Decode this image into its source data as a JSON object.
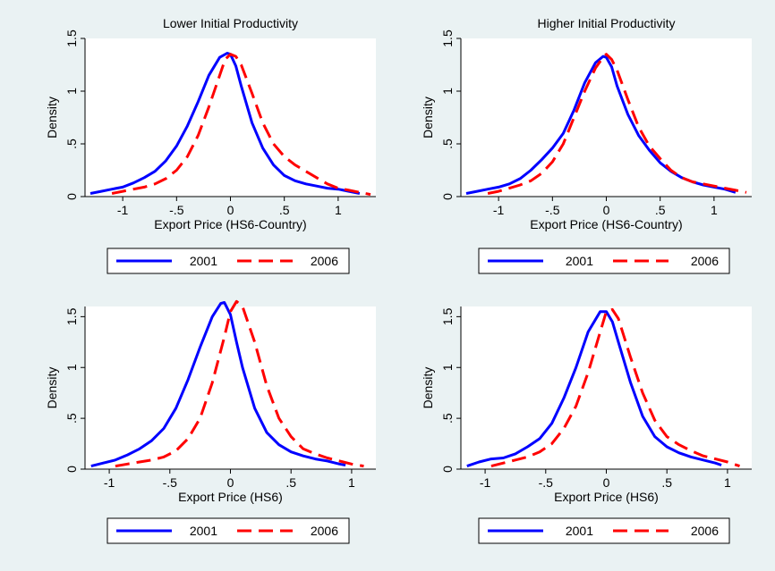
{
  "colors": {
    "background": "#eaf2f3",
    "plot_bg": "#ffffff",
    "series_2001": "#0000ff",
    "series_2006": "#ff0000"
  },
  "chart_data": [
    {
      "type": "line",
      "title": "Lower Initial Productivity",
      "xlabel": "Export Price (HS6-Country)",
      "ylabel": "Density",
      "xlim": [
        -1.35,
        1.35
      ],
      "ylim": [
        0,
        1.5
      ],
      "xticks": [
        -1,
        -0.5,
        0,
        0.5,
        1
      ],
      "xtick_labels": [
        "-1",
        "-.5",
        "0",
        ".5",
        "1"
      ],
      "yticks": [
        0,
        0.5,
        1,
        1.5
      ],
      "ytick_labels": [
        "0",
        ".5",
        "1",
        "1.5"
      ],
      "legend_position": "bottom",
      "series": [
        {
          "name": "2001",
          "style": "solid",
          "color": "#0000ff",
          "x": [
            -1.3,
            -1.2,
            -1.1,
            -1.0,
            -0.9,
            -0.8,
            -0.7,
            -0.6,
            -0.5,
            -0.4,
            -0.3,
            -0.2,
            -0.1,
            -0.03,
            0.0,
            0.05,
            0.1,
            0.2,
            0.3,
            0.4,
            0.5,
            0.6,
            0.7,
            0.8,
            0.9,
            1.0,
            1.1,
            1.2
          ],
          "y": [
            0.03,
            0.05,
            0.07,
            0.09,
            0.13,
            0.18,
            0.24,
            0.34,
            0.48,
            0.67,
            0.9,
            1.15,
            1.32,
            1.36,
            1.35,
            1.24,
            1.05,
            0.7,
            0.46,
            0.3,
            0.2,
            0.15,
            0.12,
            0.1,
            0.08,
            0.07,
            0.05,
            0.03
          ]
        },
        {
          "name": "2006",
          "style": "dashed",
          "color": "#ff0000",
          "x": [
            -1.1,
            -1.0,
            -0.9,
            -0.8,
            -0.7,
            -0.6,
            -0.5,
            -0.4,
            -0.3,
            -0.2,
            -0.1,
            -0.05,
            0.0,
            0.05,
            0.1,
            0.2,
            0.3,
            0.4,
            0.5,
            0.6,
            0.7,
            0.8,
            0.9,
            1.0,
            1.1,
            1.2,
            1.3
          ],
          "y": [
            0.03,
            0.05,
            0.07,
            0.09,
            0.12,
            0.17,
            0.25,
            0.38,
            0.58,
            0.85,
            1.15,
            1.3,
            1.35,
            1.33,
            1.25,
            0.98,
            0.7,
            0.5,
            0.38,
            0.3,
            0.24,
            0.18,
            0.12,
            0.08,
            0.06,
            0.04,
            0.02
          ]
        }
      ]
    },
    {
      "type": "line",
      "title": "Higher Initial Productivity",
      "xlabel": "Export Price (HS6-Country)",
      "ylabel": "Density",
      "xlim": [
        -1.35,
        1.35
      ],
      "ylim": [
        0,
        1.5
      ],
      "xticks": [
        -1,
        -0.5,
        0,
        0.5,
        1
      ],
      "xtick_labels": [
        "-1",
        "-.5",
        "0",
        ".5",
        "1"
      ],
      "yticks": [
        0,
        0.5,
        1,
        1.5
      ],
      "ytick_labels": [
        "0",
        ".5",
        "1",
        "1.5"
      ],
      "legend_position": "bottom",
      "series": [
        {
          "name": "2001",
          "style": "solid",
          "color": "#0000ff",
          "x": [
            -1.3,
            -1.2,
            -1.1,
            -1.0,
            -0.9,
            -0.8,
            -0.7,
            -0.6,
            -0.5,
            -0.4,
            -0.3,
            -0.2,
            -0.1,
            -0.03,
            0.0,
            0.05,
            0.1,
            0.2,
            0.3,
            0.4,
            0.5,
            0.6,
            0.7,
            0.8,
            0.9,
            1.0,
            1.1,
            1.2
          ],
          "y": [
            0.03,
            0.05,
            0.07,
            0.09,
            0.12,
            0.17,
            0.25,
            0.35,
            0.46,
            0.6,
            0.82,
            1.08,
            1.27,
            1.33,
            1.32,
            1.23,
            1.05,
            0.78,
            0.58,
            0.44,
            0.32,
            0.24,
            0.18,
            0.14,
            0.11,
            0.09,
            0.07,
            0.04
          ]
        },
        {
          "name": "2006",
          "style": "dashed",
          "color": "#ff0000",
          "x": [
            -1.1,
            -1.0,
            -0.9,
            -0.8,
            -0.7,
            -0.6,
            -0.5,
            -0.4,
            -0.3,
            -0.2,
            -0.1,
            -0.03,
            0.0,
            0.05,
            0.1,
            0.2,
            0.3,
            0.4,
            0.5,
            0.6,
            0.7,
            0.8,
            0.9,
            1.0,
            1.1,
            1.2,
            1.3
          ],
          "y": [
            0.03,
            0.05,
            0.08,
            0.11,
            0.15,
            0.22,
            0.33,
            0.5,
            0.75,
            1.0,
            1.22,
            1.32,
            1.35,
            1.3,
            1.2,
            0.92,
            0.66,
            0.48,
            0.36,
            0.25,
            0.18,
            0.14,
            0.12,
            0.1,
            0.08,
            0.06,
            0.04
          ]
        }
      ]
    },
    {
      "type": "line",
      "title": "",
      "xlabel": "Export Price (HS6)",
      "ylabel": "Density",
      "xlim": [
        -1.2,
        1.2
      ],
      "ylim": [
        0,
        1.6
      ],
      "xticks": [
        -1,
        -0.5,
        0,
        0.5,
        1
      ],
      "xtick_labels": [
        "-1",
        "-.5",
        "0",
        ".5",
        "1"
      ],
      "yticks": [
        0,
        0.5,
        1,
        1.5
      ],
      "ytick_labels": [
        "0",
        ".5",
        "1",
        "1.5"
      ],
      "legend_position": "bottom",
      "series": [
        {
          "name": "2001",
          "style": "solid",
          "color": "#0000ff",
          "x": [
            -1.15,
            -1.05,
            -0.95,
            -0.85,
            -0.75,
            -0.65,
            -0.55,
            -0.45,
            -0.35,
            -0.25,
            -0.15,
            -0.08,
            -0.05,
            0.0,
            0.05,
            0.1,
            0.2,
            0.3,
            0.4,
            0.5,
            0.6,
            0.7,
            0.8,
            0.9,
            0.95
          ],
          "y": [
            0.03,
            0.06,
            0.09,
            0.14,
            0.2,
            0.28,
            0.4,
            0.6,
            0.88,
            1.2,
            1.5,
            1.63,
            1.64,
            1.52,
            1.25,
            1.0,
            0.6,
            0.36,
            0.24,
            0.17,
            0.13,
            0.1,
            0.08,
            0.05,
            0.04
          ]
        },
        {
          "name": "2006",
          "style": "dashed",
          "color": "#ff0000",
          "x": [
            -0.95,
            -0.85,
            -0.75,
            -0.65,
            -0.55,
            -0.45,
            -0.35,
            -0.25,
            -0.15,
            -0.05,
            0.0,
            0.05,
            0.1,
            0.2,
            0.3,
            0.4,
            0.5,
            0.6,
            0.7,
            0.8,
            0.9,
            1.0,
            1.1
          ],
          "y": [
            0.03,
            0.05,
            0.07,
            0.09,
            0.12,
            0.18,
            0.3,
            0.5,
            0.85,
            1.3,
            1.55,
            1.65,
            1.6,
            1.25,
            0.82,
            0.5,
            0.32,
            0.2,
            0.15,
            0.11,
            0.08,
            0.05,
            0.03
          ]
        }
      ]
    },
    {
      "type": "line",
      "title": "",
      "xlabel": "Export Price (HS6)",
      "ylabel": "Density",
      "xlim": [
        -1.2,
        1.2
      ],
      "ylim": [
        0,
        1.6
      ],
      "xticks": [
        -1,
        -0.5,
        0,
        0.5,
        1
      ],
      "xtick_labels": [
        "-1",
        "-.5",
        "0",
        ".5",
        "1"
      ],
      "yticks": [
        0,
        0.5,
        1,
        1.5
      ],
      "ytick_labels": [
        "0",
        ".5",
        "1",
        "1.5"
      ],
      "legend_position": "bottom",
      "series": [
        {
          "name": "2001",
          "style": "solid",
          "color": "#0000ff",
          "x": [
            -1.15,
            -1.05,
            -0.95,
            -0.85,
            -0.75,
            -0.65,
            -0.55,
            -0.45,
            -0.35,
            -0.25,
            -0.15,
            -0.05,
            0.0,
            0.05,
            0.1,
            0.2,
            0.3,
            0.4,
            0.5,
            0.6,
            0.7,
            0.8,
            0.9,
            0.95
          ],
          "y": [
            0.03,
            0.07,
            0.1,
            0.11,
            0.15,
            0.22,
            0.3,
            0.45,
            0.7,
            1.0,
            1.35,
            1.55,
            1.55,
            1.45,
            1.25,
            0.85,
            0.52,
            0.32,
            0.22,
            0.16,
            0.12,
            0.09,
            0.06,
            0.04
          ]
        },
        {
          "name": "2006",
          "style": "dashed",
          "color": "#ff0000",
          "x": [
            -0.95,
            -0.85,
            -0.75,
            -0.65,
            -0.55,
            -0.45,
            -0.35,
            -0.25,
            -0.15,
            -0.05,
            0.0,
            0.05,
            0.1,
            0.2,
            0.3,
            0.4,
            0.5,
            0.6,
            0.7,
            0.8,
            0.9,
            1.0,
            1.1
          ],
          "y": [
            0.03,
            0.06,
            0.09,
            0.12,
            0.17,
            0.25,
            0.4,
            0.62,
            0.95,
            1.35,
            1.55,
            1.57,
            1.48,
            1.1,
            0.75,
            0.48,
            0.32,
            0.24,
            0.18,
            0.13,
            0.1,
            0.07,
            0.03
          ]
        }
      ]
    }
  ]
}
